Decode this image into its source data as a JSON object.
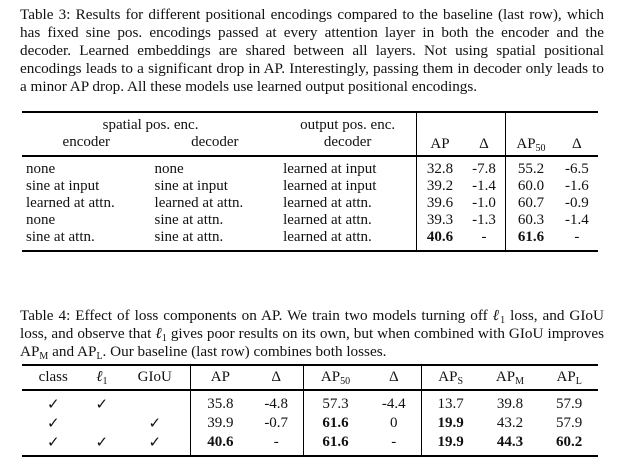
{
  "table3": {
    "caption": "Table 3: Results for different positional encodings compared to the baseline (last row), which has fixed sine pos. encodings passed at every attention layer in both the encoder and the decoder. Learned embeddings are shared between all layers. Not using spatial positional encodings leads to a significant drop in AP. Interestingly, passing them in decoder only leads to a minor AP drop. All these models use learned output positional encodings.",
    "group_spatial": "spatial pos. enc.",
    "group_output": "output pos. enc.",
    "h_encoder": "encoder",
    "h_decoder": "decoder",
    "h_out_decoder": "decoder",
    "h_ap": "AP",
    "h_delta": "Δ",
    "h_ap50": "AP",
    "h_ap50_sub": "50",
    "h_delta2": "Δ",
    "rows": [
      [
        "none",
        "none",
        "learned at input",
        "32.8",
        "-7.8",
        "55.2",
        "-6.5"
      ],
      [
        "sine at input",
        "sine at input",
        "learned at input",
        "39.2",
        "-1.4",
        "60.0",
        "-1.6"
      ],
      [
        "learned at attn.",
        "learned at attn.",
        "learned at attn.",
        "39.6",
        "-1.0",
        "60.7",
        "-0.9"
      ],
      [
        "none",
        "sine at attn.",
        "learned at attn.",
        "39.3",
        "-1.3",
        "60.3",
        "-1.4"
      ],
      [
        "sine at attn.",
        "sine at attn.",
        "learned at attn.",
        "40.6",
        "-",
        "61.6",
        "-"
      ]
    ]
  },
  "table4": {
    "caption": "Table 4: Effect of loss components on AP. We train two models turning off ℓ1 loss, and GIoU loss, and observe that ℓ1 gives poor results on its own, but when combined with GIoU improves APM and APL. Our baseline (last row) combines both losses.",
    "h_class": "class",
    "h_l1": "ℓ",
    "h_l1_sub": "1",
    "h_giou": "GIoU",
    "h_ap": "AP",
    "h_delta": "Δ",
    "h_ap50": "AP",
    "h_ap50_sub": "50",
    "h_delta2": "Δ",
    "h_aps": "AP",
    "h_aps_sub": "S",
    "h_apm": "AP",
    "h_apm_sub": "M",
    "h_apl": "AP",
    "h_apl_sub": "L",
    "check": "✓",
    "rows": [
      {
        "class": "✓",
        "l1": "✓",
        "giou": "",
        "ap": "35.8",
        "d1": "-4.8",
        "ap50": "57.3",
        "d2": "-4.4",
        "aps": "13.7",
        "apm": "39.8",
        "apl": "57.9"
      },
      {
        "class": "✓",
        "l1": "",
        "giou": "✓",
        "ap": "39.9",
        "d1": "-0.7",
        "ap50": "61.6",
        "d2": "0",
        "aps": "19.9",
        "apm": "43.2",
        "apl": "57.9"
      },
      {
        "class": "✓",
        "l1": "✓",
        "giou": "✓",
        "ap": "40.6",
        "d1": "-",
        "ap50": "61.6",
        "d2": "-",
        "aps": "19.9",
        "apm": "44.3",
        "apl": "60.2"
      }
    ]
  }
}
